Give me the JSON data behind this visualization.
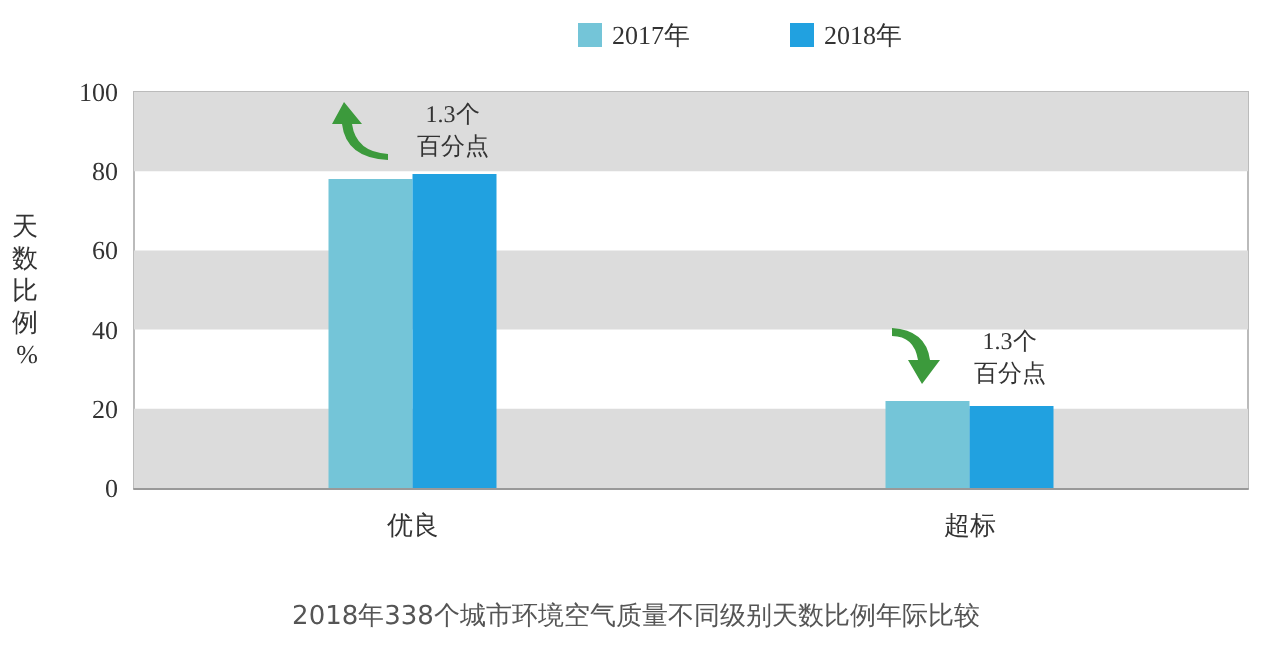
{
  "chart_data": {
    "type": "bar",
    "title": "2018年338个城市环境空气质量不同级别天数比例年际比较",
    "ylabel": "天数比例%",
    "categories": [
      "优良",
      "超标"
    ],
    "series": [
      {
        "name": "2017年",
        "color": "#74c5d8",
        "values": [
          78.0,
          22.0
        ]
      },
      {
        "name": "2018年",
        "color": "#21a1e0",
        "values": [
          79.3,
          20.7
        ]
      }
    ],
    "ylim": [
      0,
      100
    ],
    "yticks": [
      0,
      20,
      40,
      60,
      80,
      100
    ],
    "grid": false,
    "legend": "top right",
    "bands": [
      {
        "axis": "y",
        "from": 0,
        "to": 20,
        "color": "#dcdcdc"
      },
      {
        "axis": "y",
        "from": 40,
        "to": 60,
        "color": "#dcdcdc"
      },
      {
        "axis": "y",
        "from": 80,
        "to": 100,
        "color": "#dcdcdc"
      }
    ],
    "annotations": [
      "1.3个百分点",
      "1.3个百分点"
    ]
  }
}
